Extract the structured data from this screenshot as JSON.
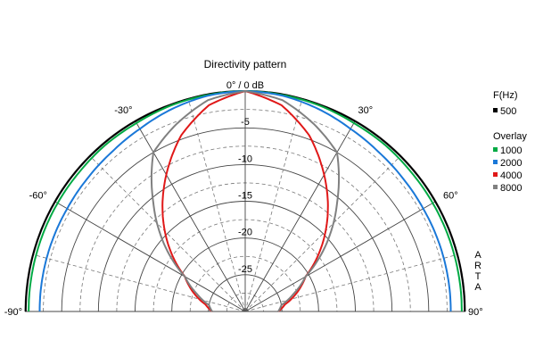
{
  "chart_data": {
    "type": "polar",
    "title": "Directivity pattern",
    "scale_unit": "dB",
    "r_range": [
      -30,
      0
    ],
    "ring_labels": [
      "0° / 0 dB",
      "-5",
      "-10",
      "-15",
      "-20",
      "-25"
    ],
    "ring_values": [
      0,
      -5,
      -10,
      -15,
      -20,
      -25
    ],
    "angle_labels": [
      {
        "deg": -90,
        "text": "-90°"
      },
      {
        "deg": -60,
        "text": "-60°"
      },
      {
        "deg": -30,
        "text": "-30°"
      },
      {
        "deg": 30,
        "text": "30°"
      },
      {
        "deg": 60,
        "text": "60°"
      },
      {
        "deg": 90,
        "text": "90°"
      }
    ],
    "watermark": [
      "A",
      "R",
      "T",
      "A"
    ],
    "grid": true,
    "legend": {
      "placement": "right",
      "header": "F(Hz)",
      "overlay_label": "Overlay",
      "entries": [
        {
          "name": "500",
          "color": "#000000"
        },
        {
          "name": "1000",
          "color": "#00aa44"
        },
        {
          "name": "2000",
          "color": "#1a78d8"
        },
        {
          "name": "4000",
          "color": "#e01818"
        },
        {
          "name": "8000",
          "color": "#808080"
        }
      ]
    },
    "angles_deg": [
      -90,
      -80,
      -70,
      -60,
      -50,
      -40,
      -30,
      -20,
      -10,
      0,
      10,
      20,
      30,
      40,
      50,
      60,
      70,
      80,
      90
    ],
    "series": [
      {
        "name": "500",
        "color": "#000000",
        "values": [
          -0.1,
          -0.1,
          -0.1,
          -0.1,
          -0.1,
          -0.1,
          -0.1,
          -0.1,
          0,
          0,
          0,
          -0.1,
          -0.1,
          -0.1,
          -0.1,
          -0.1,
          -0.1,
          -0.1,
          -0.1
        ]
      },
      {
        "name": "1000",
        "color": "#00aa44",
        "values": [
          -0.5,
          -0.5,
          -0.5,
          -0.5,
          -0.5,
          -0.4,
          -0.4,
          -0.2,
          -0.1,
          0,
          -0.1,
          -0.2,
          -0.4,
          -0.4,
          -0.5,
          -0.5,
          -0.5,
          -0.5,
          -0.5
        ]
      },
      {
        "name": "2000",
        "color": "#1a78d8",
        "values": [
          -2.0,
          -2.0,
          -2.0,
          -2.0,
          -1.9,
          -1.7,
          -1.3,
          -0.7,
          -0.2,
          0,
          -0.2,
          -0.7,
          -1.3,
          -1.7,
          -1.9,
          -2.0,
          -2.0,
          -2.0,
          -2.0
        ]
      },
      {
        "name": "4000",
        "color": "#e01818",
        "values": [
          -25.5,
          -24.5,
          -22.5,
          -20.5,
          -16.5,
          -12.5,
          -8.5,
          -4.5,
          -1.5,
          0,
          -1.5,
          -4.5,
          -8.5,
          -12.5,
          -16.5,
          -20.5,
          -22.5,
          -24.5,
          -25.5
        ]
      },
      {
        "name": "8000",
        "color": "#808080",
        "values": [
          -25.5,
          -25.0,
          -23.0,
          -20.5,
          -15.5,
          -10.5,
          -5.0,
          -2.8,
          -0.8,
          0,
          -0.8,
          -2.8,
          -5.0,
          -10.5,
          -15.5,
          -20.5,
          -23.0,
          -25.0,
          -25.5
        ]
      }
    ]
  }
}
